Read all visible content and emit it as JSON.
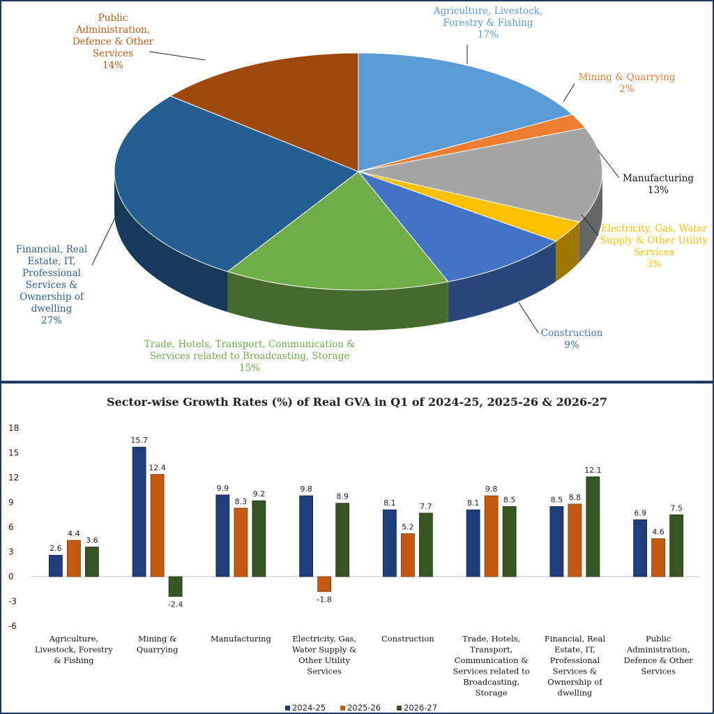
{
  "chart_data": [
    {
      "type": "pie",
      "title": "",
      "slices": [
        {
          "label": [
            "Agriculture, Livestock,",
            "Forestry & Fishing"
          ],
          "value": 17,
          "value_text": "17%",
          "color": "#5b9bd5",
          "label_color": "#5b9bd5"
        },
        {
          "label": [
            "Mining & Quarrying"
          ],
          "value": 2,
          "value_text": "2%",
          "color": "#ed7d31",
          "label_color": "#ed7d31"
        },
        {
          "label": [
            "Manufacturing"
          ],
          "value": 13,
          "value_text": "13%",
          "color": "#a5a5a5",
          "label_color": "#111111"
        },
        {
          "label": [
            "Electricity, Gas, Water",
            "Supply & Other Utility",
            "Services"
          ],
          "value": 3,
          "value_text": "3%",
          "color": "#ffc000",
          "label_color": "#ffc000"
        },
        {
          "label": [
            "Construction"
          ],
          "value": 9,
          "value_text": "9%",
          "color": "#4472c4",
          "label_color": "#4472c4"
        },
        {
          "label": [
            "Trade, Hotels, Transport, Communication &",
            "Services related to Broadcasting, Storage"
          ],
          "value": 15,
          "value_text": "15%",
          "color": "#70ad47",
          "label_color": "#70ad47"
        },
        {
          "label": [
            "Financial, Real",
            "Estate, IT,",
            "Professional",
            "Services &",
            "Ownership of",
            "dwelling"
          ],
          "value": 27,
          "value_text": "27%",
          "color": "#255e91",
          "label_color": "#2e5f8f"
        },
        {
          "label": [
            "Public",
            "Administration,",
            "Defence & Other",
            "Services"
          ],
          "value": 14,
          "value_text": "14%",
          "color": "#9e480e",
          "label_color": "#c55a11"
        }
      ]
    },
    {
      "type": "bar",
      "title": "Sector-wise Growth Rates (%) of Real GVA in Q1 of  2024-25, 2025-26 & 2026-27",
      "categories": [
        [
          "Agriculture,",
          "Livestock, Forestry",
          "& Fishing"
        ],
        [
          "Mining &",
          "Quarrying"
        ],
        [
          "Manufacturing"
        ],
        [
          "Electricity, Gas,",
          "Water Supply &",
          "Other Utility",
          "Services"
        ],
        [
          "Construction"
        ],
        [
          "Trade, Hotels,",
          "Transport,",
          "Communication &",
          "Services related to",
          "Broadcasting,",
          "Storage"
        ],
        [
          "Financial, Real",
          "Estate, IT,",
          "Professional",
          "Services &",
          "Ownership of",
          "dwelling"
        ],
        [
          "Public",
          "Administration,",
          "Defence & Other",
          "Services"
        ]
      ],
      "series": [
        {
          "name": "2024-25",
          "color": "#1f3d7a",
          "values": [
            2.6,
            15.7,
            9.9,
            9.8,
            8.1,
            8.1,
            8.5,
            6.9
          ]
        },
        {
          "name": "2025-26",
          "color": "#c55a11",
          "values": [
            4.4,
            12.4,
            8.3,
            -1.8,
            5.2,
            9.8,
            8.8,
            4.6
          ]
        },
        {
          "name": "2026-27",
          "color": "#375623",
          "values": [
            3.6,
            -2.4,
            9.2,
            8.9,
            7.7,
            8.5,
            12.1,
            7.5
          ]
        }
      ],
      "ylim": [
        -6,
        18
      ],
      "yticks": [
        -6,
        -3,
        0,
        3,
        6,
        9,
        12,
        15,
        18
      ],
      "legend": "bottom"
    }
  ]
}
